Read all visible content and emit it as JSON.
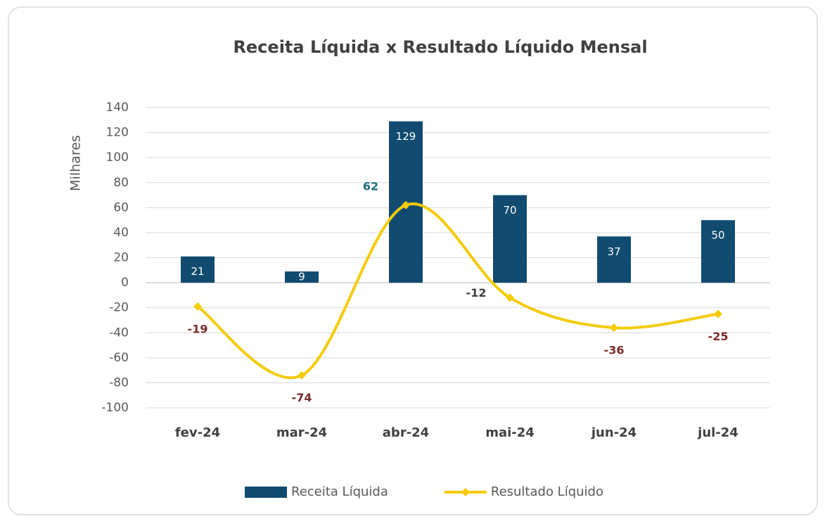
{
  "chart_data": {
    "type": "bar",
    "title": "Receita Líquida x Resultado Líquido Mensal",
    "y_label": "Milhares",
    "categories": [
      "fev-24",
      "mar-24",
      "abr-24",
      "mai-24",
      "jun-24",
      "jul-24"
    ],
    "series": [
      {
        "name": "Receita Líquida",
        "color": "#114b6f",
        "type": "bar",
        "values": [
          21,
          9,
          129,
          70,
          37,
          50
        ]
      },
      {
        "name": "Resultado Líquido",
        "color": "#f5cb0a",
        "type": "line",
        "values": [
          -19,
          -74,
          62,
          -12,
          -36,
          -25
        ]
      }
    ],
    "ylim": [
      -100,
      140
    ],
    "yticks": [
      -100,
      -80,
      -60,
      -40,
      -20,
      0,
      20,
      40,
      60,
      80,
      100,
      120,
      140
    ],
    "grid": true,
    "legend": "bottom"
  }
}
